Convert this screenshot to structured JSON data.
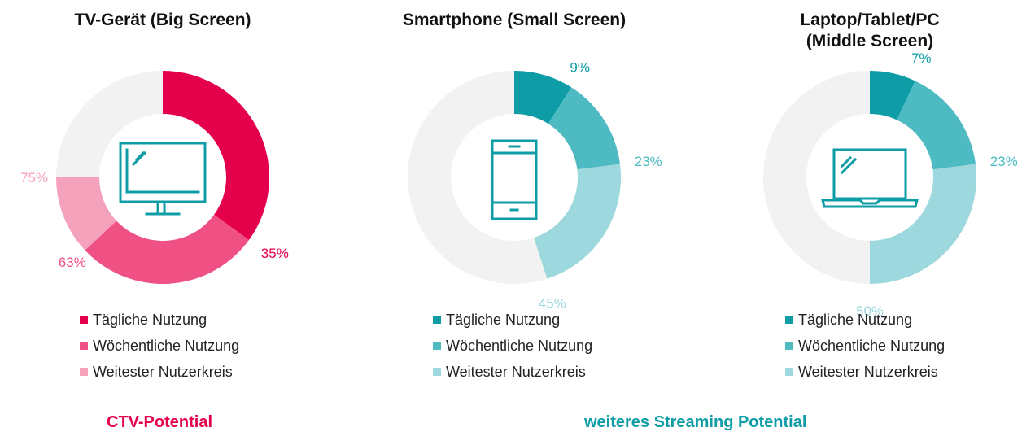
{
  "chart_data": [
    {
      "type": "pie",
      "title": "TV-Gerät (Big Screen)",
      "categories": [
        "Tägliche Nutzung",
        "Wöchentliche Nutzung",
        "Weitester Nutzerkreis"
      ],
      "values": [
        35,
        63,
        75
      ],
      "value_labels": [
        "35%",
        "63%",
        "75%"
      ],
      "cumulative": true,
      "colors": [
        "#E4004B",
        "#EF5184",
        "#F4A1BC"
      ],
      "icon": "tv-monitor-icon"
    },
    {
      "type": "pie",
      "title": "Smartphone (Small Screen)",
      "categories": [
        "Tägliche Nutzung",
        "Wöchentliche Nutzung",
        "Weitester Nutzerkreis"
      ],
      "values": [
        9,
        23,
        45
      ],
      "value_labels": [
        "9%",
        "23%",
        "45%"
      ],
      "cumulative": true,
      "colors": [
        "#0E9CA6",
        "#4EBAC2",
        "#9CD8DD"
      ],
      "icon": "smartphone-icon"
    },
    {
      "type": "pie",
      "title": "Laptop/Tablet/PC\n(Middle Screen)",
      "categories": [
        "Tägliche Nutzung",
        "Wöchentliche Nutzung",
        "Weitester Nutzerkreis"
      ],
      "values": [
        7,
        23,
        50
      ],
      "value_labels": [
        "7%",
        "23%",
        "50%"
      ],
      "cumulative": true,
      "colors": [
        "#0E9CA6",
        "#4EBAC2",
        "#9CD8DD"
      ],
      "icon": "laptop-icon"
    }
  ],
  "colors": {
    "rest": "#F2F2F2",
    "icon": "#0E9CA6"
  },
  "footer": {
    "ctv": "CTV-Potential",
    "ctv_color": "#E4004B",
    "streaming": "weiteres Streaming Potential",
    "streaming_color": "#0E9CA6"
  }
}
